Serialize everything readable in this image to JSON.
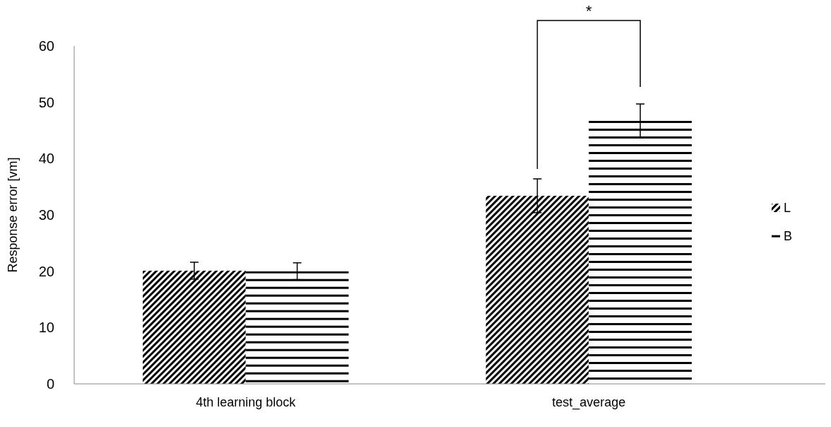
{
  "chart_data": {
    "type": "bar",
    "ylabel": "Response error [vm]",
    "categories": [
      "4th learning block",
      "test_average"
    ],
    "series": [
      {
        "name": "L",
        "color": "#000000",
        "values": [
          20.1,
          33.4
        ],
        "errors": [
          1.5,
          3
        ]
      },
      {
        "name": "B",
        "color": "#000000",
        "values": [
          20,
          46.7
        ],
        "errors": [
          1.5,
          3
        ]
      }
    ],
    "ylim": [
      0,
      60
    ],
    "yticks": [
      0,
      10,
      20,
      30,
      40,
      50,
      60
    ],
    "grid": false,
    "legend": "right",
    "annotations": [
      "*"
    ]
  }
}
